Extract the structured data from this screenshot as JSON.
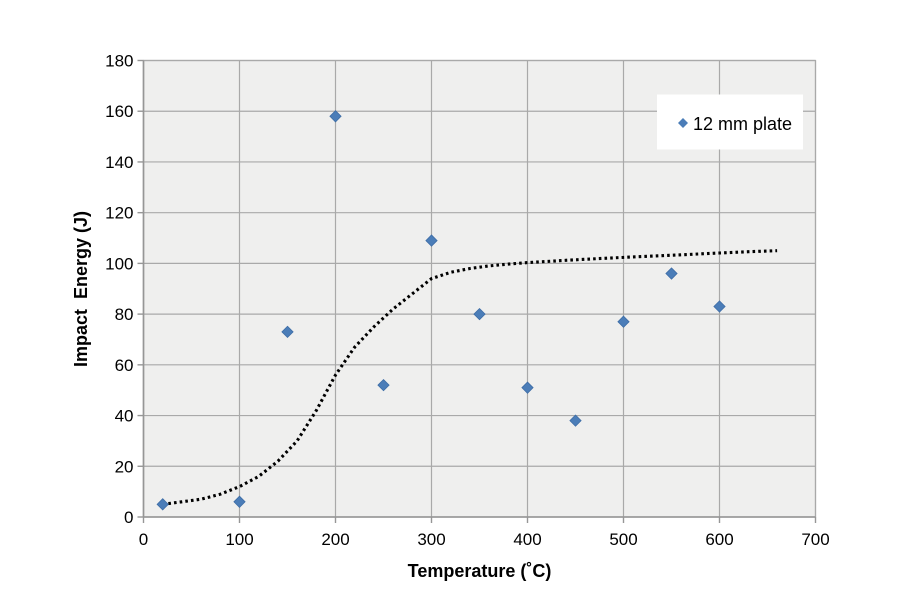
{
  "chart_data": {
    "type": "scatter",
    "title": "",
    "xlabel": "Temperature (˚C)",
    "ylabel": "Impact  Energy (J)",
    "xlim": [
      0,
      700
    ],
    "ylim": [
      0,
      180
    ],
    "x_ticks": [
      0,
      100,
      200,
      300,
      400,
      500,
      600,
      700
    ],
    "y_ticks": [
      0,
      20,
      40,
      60,
      80,
      100,
      120,
      140,
      160,
      180
    ],
    "grid": true,
    "legend": {
      "label": "12 mm plate",
      "position": "top-right-inside"
    },
    "series": [
      {
        "name": "12 mm plate",
        "marker": "diamond",
        "color": "#4b7db8",
        "points": [
          [
            20,
            5
          ],
          [
            100,
            6
          ],
          [
            150,
            73
          ],
          [
            200,
            158
          ],
          [
            250,
            52
          ],
          [
            300,
            109
          ],
          [
            350,
            80
          ],
          [
            400,
            51
          ],
          [
            450,
            38
          ],
          [
            500,
            77
          ],
          [
            550,
            96
          ],
          [
            600,
            83
          ]
        ]
      }
    ],
    "trend_curve": {
      "style": "dotted",
      "color": "#000000",
      "points": [
        [
          20,
          5
        ],
        [
          40,
          6
        ],
        [
          60,
          7
        ],
        [
          80,
          9
        ],
        [
          100,
          12
        ],
        [
          120,
          16
        ],
        [
          140,
          22
        ],
        [
          160,
          30
        ],
        [
          180,
          42
        ],
        [
          200,
          56
        ],
        [
          220,
          67
        ],
        [
          240,
          75
        ],
        [
          260,
          82
        ],
        [
          280,
          88
        ],
        [
          300,
          94
        ],
        [
          320,
          96.5
        ],
        [
          340,
          98
        ],
        [
          360,
          99
        ],
        [
          380,
          99.7
        ],
        [
          400,
          100.3
        ],
        [
          440,
          101.2
        ],
        [
          480,
          102
        ],
        [
          520,
          102.7
        ],
        [
          560,
          103.4
        ],
        [
          600,
          104.1
        ],
        [
          630,
          104.6
        ],
        [
          660,
          105
        ]
      ]
    },
    "colors": {
      "plot_bg": "#efefee",
      "gridline": "#a9a9a9",
      "axis": "#969696",
      "marker_fill": "#4b7db8",
      "marker_edge": "#3e6da6",
      "legend_bg": "#ffffff",
      "text": "#000000"
    }
  }
}
